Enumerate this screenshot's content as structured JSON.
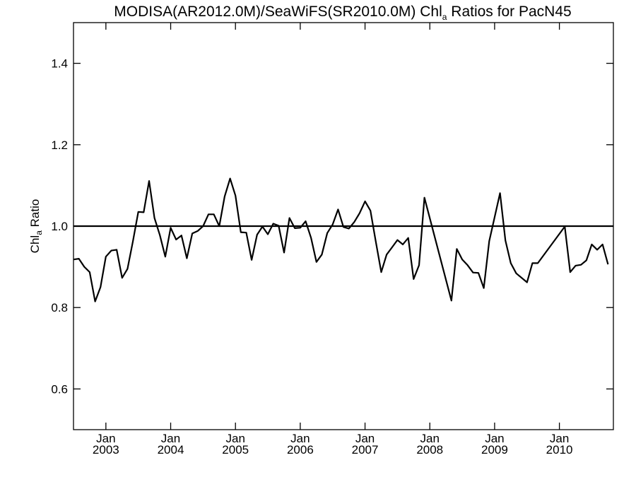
{
  "chart_data": {
    "type": "line",
    "title_parts": [
      "MODISA(AR2012.0M)/SeaWiFS(SR2010.0M)  Chl",
      "a",
      " Ratios for PacN45"
    ],
    "ylabel_parts": [
      "Chl",
      "a",
      " Ratio"
    ],
    "xlabel": "",
    "ylim": [
      0.5,
      1.5
    ],
    "xlim": [
      "2002-07-01",
      "2010-11-01"
    ],
    "yticks": [
      0.6,
      0.8,
      1.0,
      1.2,
      1.4
    ],
    "ytick_labels": [
      "0.6",
      "0.8",
      "1.0",
      "1.2",
      "1.4"
    ],
    "xticks": [
      {
        "date": "2003-01-01",
        "month": "Jan",
        "year": "2003"
      },
      {
        "date": "2004-01-01",
        "month": "Jan",
        "year": "2004"
      },
      {
        "date": "2005-01-01",
        "month": "Jan",
        "year": "2005"
      },
      {
        "date": "2006-01-01",
        "month": "Jan",
        "year": "2006"
      },
      {
        "date": "2007-01-01",
        "month": "Jan",
        "year": "2007"
      },
      {
        "date": "2008-01-01",
        "month": "Jan",
        "year": "2008"
      },
      {
        "date": "2009-01-01",
        "month": "Jan",
        "year": "2009"
      },
      {
        "date": "2010-01-01",
        "month": "Jan",
        "year": "2010"
      }
    ],
    "reference_line": 1.0,
    "grid": false,
    "series": [
      {
        "points": [
          [
            "2002-07",
            0.918
          ],
          [
            "2002-08",
            0.92
          ],
          [
            "2002-09",
            0.9
          ],
          [
            "2002-10",
            0.887
          ],
          [
            "2002-11",
            0.815
          ],
          [
            "2002-12",
            0.85
          ],
          [
            "2003-01",
            0.925
          ],
          [
            "2003-02",
            0.94
          ],
          [
            "2003-03",
            0.942
          ],
          [
            "2003-04",
            0.873
          ],
          [
            "2003-05",
            0.895
          ],
          [
            "2003-06",
            0.962
          ],
          [
            "2003-07",
            1.035
          ],
          [
            "2003-08",
            1.034
          ],
          [
            "2003-09",
            1.111
          ],
          [
            "2003-10",
            1.02
          ],
          [
            "2003-11",
            0.978
          ],
          [
            "2003-12",
            0.925
          ],
          [
            "2004-01",
            0.996
          ],
          [
            "2004-02",
            0.967
          ],
          [
            "2004-03",
            0.977
          ],
          [
            "2004-04",
            0.921
          ],
          [
            "2004-05",
            0.982
          ],
          [
            "2004-06",
            0.988
          ],
          [
            "2004-07",
            1.0
          ],
          [
            "2004-08",
            1.029
          ],
          [
            "2004-09",
            1.029
          ],
          [
            "2004-10",
            1.0
          ],
          [
            "2004-11",
            1.073
          ],
          [
            "2004-12",
            1.117
          ],
          [
            "2005-01",
            1.075
          ],
          [
            "2005-02",
            0.985
          ],
          [
            "2005-03",
            0.984
          ],
          [
            "2005-04",
            0.917
          ],
          [
            "2005-05",
            0.979
          ],
          [
            "2005-06",
            0.999
          ],
          [
            "2005-07",
            0.98
          ],
          [
            "2005-08",
            1.006
          ],
          [
            "2005-09",
            1.001
          ],
          [
            "2005-10",
            0.935
          ],
          [
            "2005-11",
            1.02
          ],
          [
            "2005-12",
            0.995
          ],
          [
            "2006-01",
            0.996
          ],
          [
            "2006-02",
            1.012
          ],
          [
            "2006-03",
            0.971
          ],
          [
            "2006-04",
            0.912
          ],
          [
            "2006-05",
            0.93
          ],
          [
            "2006-06",
            0.983
          ],
          [
            "2006-07",
            1.004
          ],
          [
            "2006-08",
            1.041
          ],
          [
            "2006-09",
            0.998
          ],
          [
            "2006-10",
            0.994
          ],
          [
            "2006-11",
            1.01
          ],
          [
            "2006-12",
            1.032
          ],
          [
            "2007-01",
            1.061
          ],
          [
            "2007-02",
            1.038
          ],
          [
            "2007-03",
            0.962
          ],
          [
            "2007-04",
            0.887
          ],
          [
            "2007-05",
            0.93
          ],
          [
            "2007-06",
            0.948
          ],
          [
            "2007-07",
            0.966
          ],
          [
            "2007-08",
            0.955
          ],
          [
            "2007-09",
            0.971
          ],
          [
            "2007-10",
            0.87
          ],
          [
            "2007-11",
            0.904
          ],
          [
            "2007-12",
            1.07
          ],
          [
            "2008-05",
            0.817
          ],
          [
            "2008-06",
            0.944
          ],
          [
            "2008-07",
            0.918
          ],
          [
            "2008-08",
            0.904
          ],
          [
            "2008-09",
            0.886
          ],
          [
            "2008-10",
            0.885
          ],
          [
            "2008-11",
            0.848
          ],
          [
            "2008-12",
            0.963
          ],
          [
            "2009-02",
            1.081
          ],
          [
            "2009-03",
            0.965
          ],
          [
            "2009-04",
            0.909
          ],
          [
            "2009-05",
            0.884
          ],
          [
            "2009-07",
            0.862
          ],
          [
            "2009-08",
            0.909
          ],
          [
            "2009-09",
            0.909
          ],
          [
            "2010-02",
            0.999
          ],
          [
            "2010-03",
            0.887
          ],
          [
            "2010-04",
            0.903
          ],
          [
            "2010-05",
            0.905
          ],
          [
            "2010-06",
            0.916
          ],
          [
            "2010-07",
            0.955
          ],
          [
            "2010-08",
            0.942
          ],
          [
            "2010-09",
            0.955
          ],
          [
            "2010-10",
            0.906
          ]
        ]
      }
    ]
  }
}
